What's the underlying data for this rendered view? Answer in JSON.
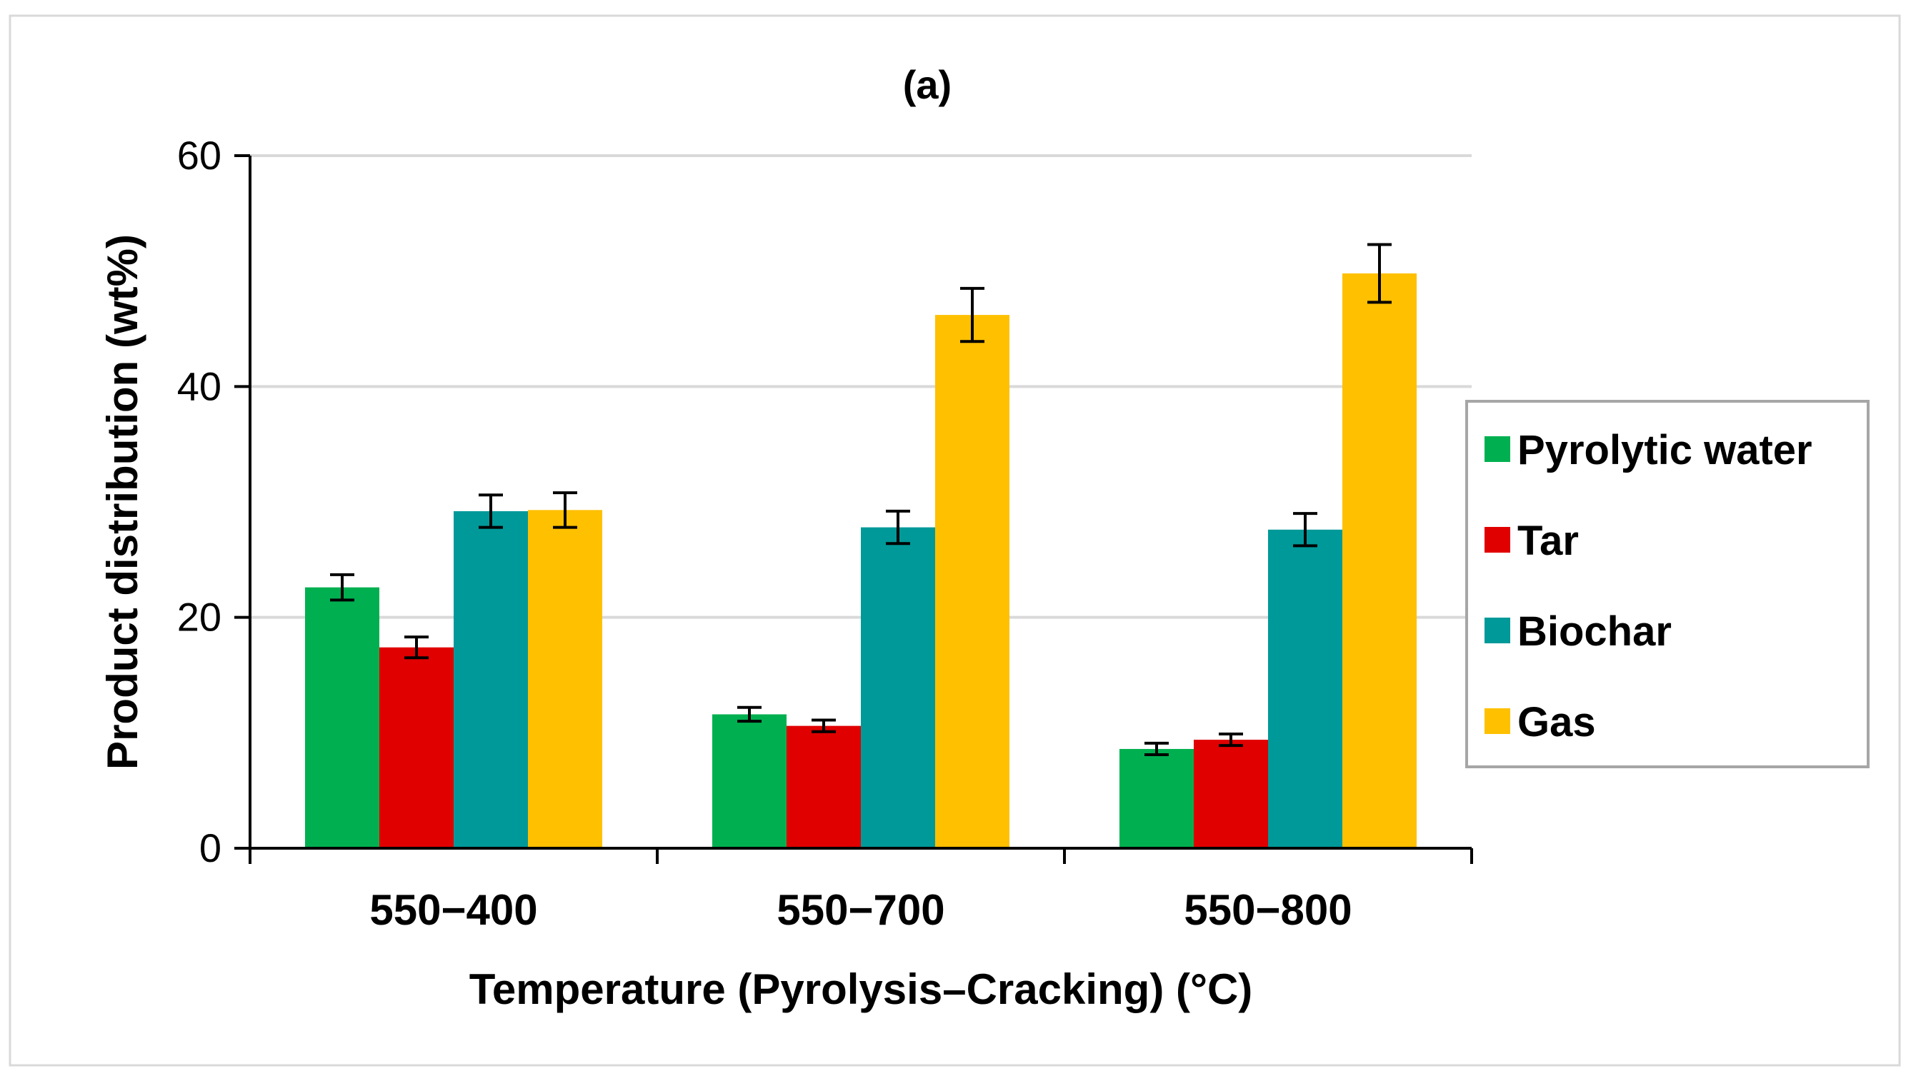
{
  "chart_data": {
    "type": "bar",
    "title": "(a)",
    "xlabel": "Temperature (Pyrolysis–Cracking) (°C)",
    "ylabel": "Product distribution (wt%)",
    "ylim": [
      0,
      60
    ],
    "yticks": [
      0,
      20,
      40,
      60
    ],
    "grid": true,
    "legend_position": "right",
    "categories": [
      "550−400",
      "550−700",
      "550−800"
    ],
    "series": [
      {
        "name": "Pyrolytic water",
        "color": "#00b050",
        "values": [
          22.6,
          11.6,
          8.6
        ],
        "errors": [
          1.1,
          0.6,
          0.5
        ]
      },
      {
        "name": "Tar",
        "color": "#e00000",
        "values": [
          17.4,
          10.6,
          9.4
        ],
        "errors": [
          0.9,
          0.5,
          0.5
        ]
      },
      {
        "name": "Biochar",
        "color": "#009999",
        "values": [
          29.2,
          27.8,
          27.6
        ],
        "errors": [
          1.4,
          1.4,
          1.4
        ]
      },
      {
        "name": "Gas",
        "color": "#ffc000",
        "values": [
          29.3,
          46.2,
          49.8
        ],
        "errors": [
          1.5,
          2.3,
          2.5
        ]
      }
    ]
  }
}
